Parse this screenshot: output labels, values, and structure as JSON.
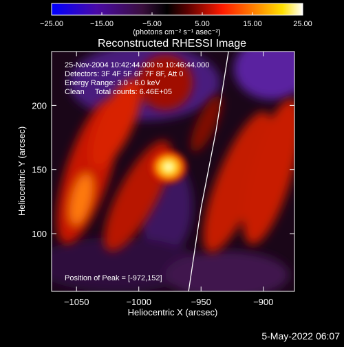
{
  "chart_data": {
    "type": "heatmap",
    "title": "Reconstructed RHESSI Image",
    "xlabel": "Heliocentric X (arcsec)",
    "ylabel": "Heliocentric Y (arcsec)",
    "xlim": [
      -1070,
      -875
    ],
    "ylim": [
      55,
      242
    ],
    "x_ticks": [
      -1050,
      -1000,
      -950,
      -900
    ],
    "x_tick_labels": [
      "−1050",
      "−1000",
      "−950",
      "−900"
    ],
    "y_ticks": [
      100,
      150,
      200
    ],
    "y_tick_labels": [
      "100",
      "150",
      "200"
    ],
    "colorbar": {
      "range": [
        -25,
        25
      ],
      "ticks": [
        -25,
        -15,
        -5,
        5,
        15,
        25
      ],
      "tick_labels": [
        "−25.00",
        "−15.00",
        "−5.00",
        "5.00",
        "15.00",
        "25.00"
      ],
      "unit_label": "(photons cm⁻² s⁻¹ asec⁻²)",
      "colormap": "blue-purple-red-yellow-white"
    },
    "annotations": [
      "25-Nov-2004 10:42:44.000 to 10:46:44.000",
      "Detectors: 3F 4F 5F 6F 7F 8F, Att 0",
      "Energy Range: 3.0 - 6.0 keV",
      "Clean     Total counts: 6.46E+05"
    ],
    "peak_label": "Position of Peak = [-972,152]",
    "peak": [
      -972,
      152
    ],
    "limb": [
      [
        -960,
        55
      ],
      [
        -950,
        120
      ],
      [
        -938,
        180
      ],
      [
        -928,
        242
      ]
    ],
    "date_stamp": "5-May-2022 06:07"
  }
}
